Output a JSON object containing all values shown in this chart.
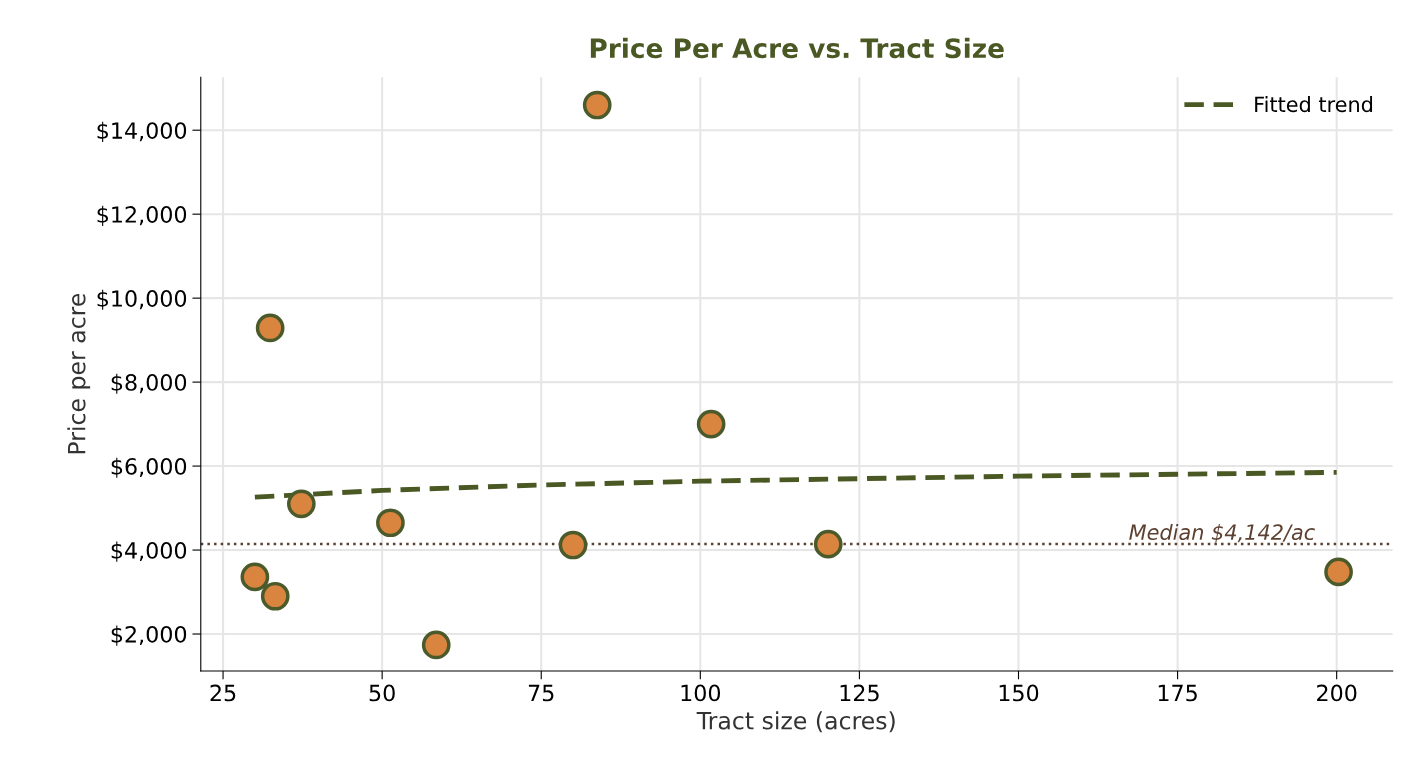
{
  "chart_data": {
    "type": "scatter",
    "title": "Price Per Acre vs. Tract Size",
    "xlabel": "Tract size (acres)",
    "ylabel": "Price per acre",
    "series": [
      {
        "color": "#d9843f",
        "marker": "circle",
        "x": [
          30.0,
          32.4,
          33.2,
          37.3,
          51.3,
          58.5,
          80.0,
          83.8,
          101.7,
          120.1,
          200.3
        ],
        "values": [
          3360,
          9290,
          2900,
          5100,
          4650,
          1740,
          4120,
          14600,
          7000,
          4140,
          3480
        ]
      },
      {
        "type": "line",
        "name": "Fitted trend",
        "color": "#4a5823",
        "line_style": "dashed",
        "x": [
          30,
          50,
          75,
          100,
          150,
          200
        ],
        "values": [
          5260,
          5420,
          5550,
          5640,
          5760,
          5850
        ]
      }
    ],
    "ref_lines": [
      {
        "axis": "y",
        "value": 4142,
        "label": "Median $4,142/ac",
        "color": "#5c4030",
        "line_style": "dotted"
      }
    ],
    "xlim": [
      21.5,
      208.8
    ],
    "ylim": [
      1120,
      15260
    ],
    "xticks": [
      25,
      50,
      75,
      100,
      125,
      150,
      175,
      200
    ],
    "yticks": [
      {
        "value": 2000,
        "label": "$2,000"
      },
      {
        "value": 4000,
        "label": "$4,000"
      },
      {
        "value": 6000,
        "label": "$6,000"
      },
      {
        "value": 8000,
        "label": "$8,000"
      },
      {
        "value": 10000,
        "label": "$10,000"
      },
      {
        "value": 12000,
        "label": "$12,000"
      },
      {
        "value": 14000,
        "label": "$14,000"
      }
    ],
    "grid": true,
    "legend": "top right"
  }
}
